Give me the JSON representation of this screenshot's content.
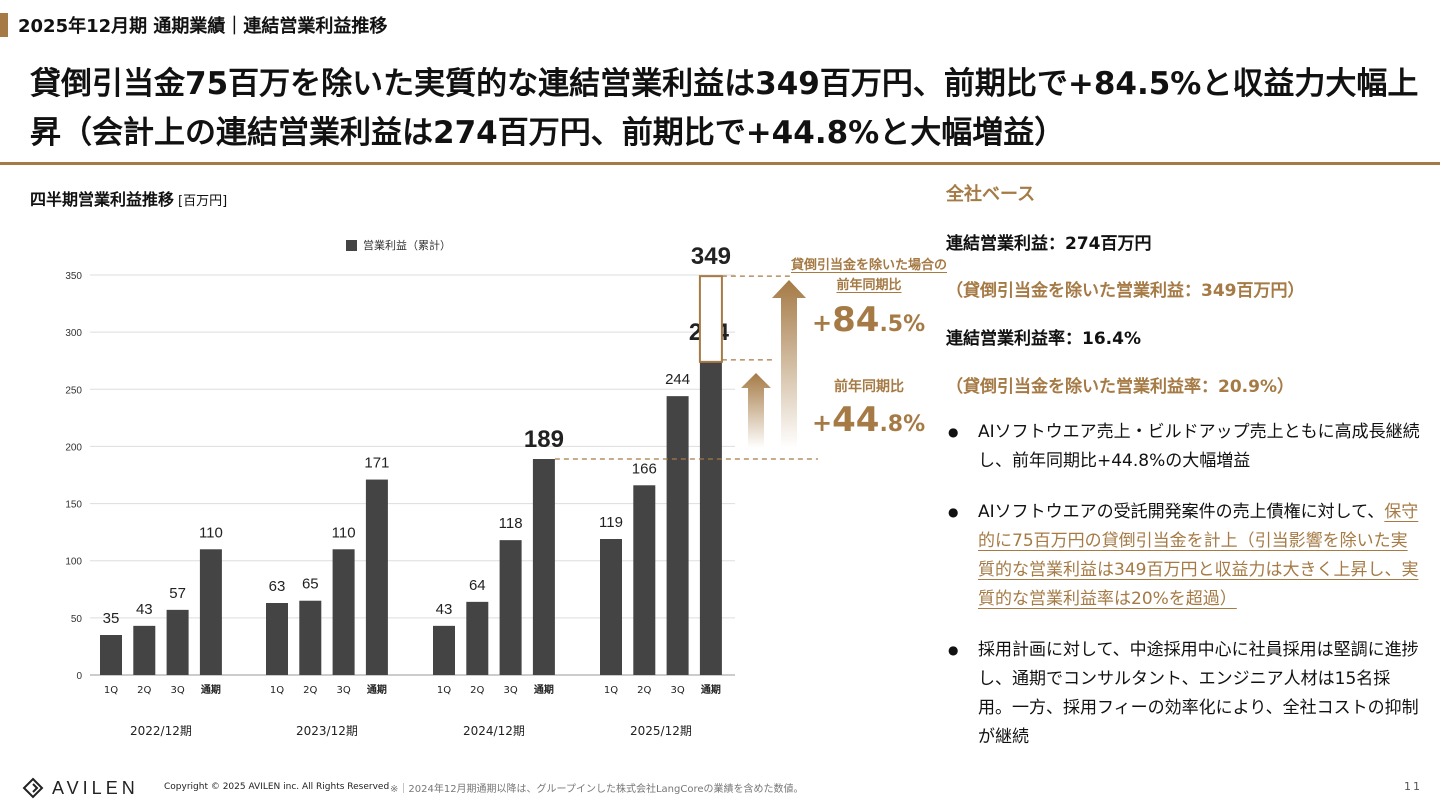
{
  "header": {
    "title": "2025年12月期 通期業績｜連結営業利益推移"
  },
  "headline": "貸倒引当金75百万を除いた実質的な連結営業利益は349百万円、前期比で+84.5%と収益力大幅上昇（会計上の連結営業利益は274百万円、前期比で+44.8%と大幅増益）",
  "chart_title": "四半期営業利益推移",
  "chart_unit": "[百万円]",
  "chart_data": {
    "type": "bar",
    "legend": "営業利益（累計）",
    "legend_position": "top",
    "ylim": [
      0,
      350
    ],
    "yticks": [
      0,
      50,
      100,
      150,
      200,
      250,
      300,
      350
    ],
    "grid": true,
    "bar_color": "#444444",
    "groups": [
      {
        "period": "2022/12期",
        "categories": [
          "1Q",
          "2Q",
          "3Q",
          "通期"
        ],
        "values": [
          35,
          43,
          57,
          110
        ]
      },
      {
        "period": "2023/12期",
        "categories": [
          "1Q",
          "2Q",
          "3Q",
          "通期"
        ],
        "values": [
          63,
          65,
          110,
          171
        ]
      },
      {
        "period": "2024/12期",
        "categories": [
          "1Q",
          "2Q",
          "3Q",
          "通期"
        ],
        "values": [
          43,
          64,
          118,
          189
        ]
      },
      {
        "period": "2025/12期",
        "categories": [
          "1Q",
          "2Q",
          "3Q",
          "通期"
        ],
        "values": [
          119,
          166,
          244,
          274
        ]
      }
    ],
    "adjusted_value": 349,
    "annotations": {
      "adjusted_label": "貸倒引当金を除いた場合の前年同期比",
      "adjusted_growth_sign": "+",
      "adjusted_growth_big": "84",
      "adjusted_growth_small": ".5%",
      "growth_label": "前年同期比",
      "growth_sign": "+",
      "growth_big": "44",
      "growth_small": ".8%"
    }
  },
  "right_panel": {
    "title": "全社ベース",
    "op_income": "連結営業利益：274百万円",
    "op_income_adj": "（貸倒引当金を除いた営業利益：349百万円）",
    "op_margin": "連結営業利益率：16.4%",
    "op_margin_adj": "（貸倒引当金を除いた営業利益率：20.9%）",
    "bullet1": "AIソフトウエア売上・ビルドアップ売上ともに高成長継続し、前年同期比+44.8%の大幅増益",
    "bullet2_pre": "AIソフトウエアの受託開発案件の売上債権に対して、",
    "bullet2_hl": "保守的に75百万円の貸倒引当金を計上（引当影響を除いた実質的な営業利益は349百万円と収益力は大きく上昇し、実質的な営業利益率は20%を超過）",
    "bullet3": "採用計画に対して、中途採用中心に社員採用は堅調に進捗し、通期でコンサルタント、エンジニア人材は15名採用。一方、採用フィーの効率化により、全社コストの抑制が継続",
    "bullet_mark": "●"
  },
  "footer": {
    "logo": "AVILEN",
    "copyright": "Copyright © 2025 AVILEN inc. All Rights Reserved",
    "note": "※｜2024年12月期通期以降は、グループインした株式会社LangCoreの業績を含めた数値。",
    "page": "11"
  },
  "colors": {
    "accent": "#a57a45",
    "bar": "#444444"
  }
}
